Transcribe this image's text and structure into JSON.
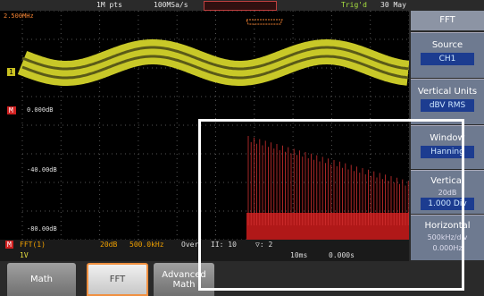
{
  "status_bar": {
    "record_length": "1M pts",
    "sample_rate": "100MSa/s",
    "trigger": "Trig'd",
    "date": "30 May"
  },
  "display": {
    "freq_label": "2.500MHz",
    "level_labels": [
      "0.000dB",
      "-40.00dB",
      "-80.00dB"
    ],
    "channel_marker": "1",
    "math_marker": "M"
  },
  "menu": {
    "title": "FFT",
    "items": [
      {
        "label": "Source",
        "value": "CH1"
      },
      {
        "label": "Vertical Units",
        "value": "dBV RMS"
      },
      {
        "label": "Window",
        "value": "Hanning"
      },
      {
        "label": "Vertical",
        "value": "20dB",
        "value2": "1.000 Div"
      },
      {
        "label": "Horizontal",
        "value": "500kHz/div",
        "value2": "0.000Hz"
      }
    ]
  },
  "info_bar": {
    "math": "M",
    "fft": "FFT(1)",
    "scale": "20dB",
    "freq": "500.0kHz",
    "over": "Over",
    "iteration": "II: 10",
    "avg": "▽: 2",
    "ch1_scale": "1V",
    "timebase": "10ms",
    "delay": "0.000s"
  },
  "softkeys": [
    "Math",
    "FFT",
    "Advanced Math"
  ]
}
